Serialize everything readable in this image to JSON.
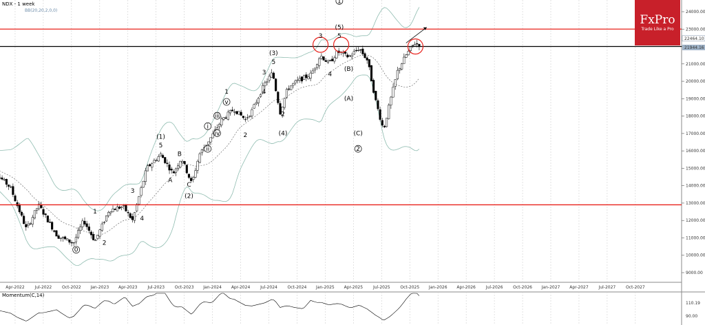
{
  "chart_data": {
    "type": "candlestick",
    "title": "NDX - 1 week",
    "indicator_label": "BB(20,20,2,0,0)",
    "momentum_label": "Momentum(C,14)",
    "momentum_value": "110.19",
    "momentum_ticks": [
      "90.00"
    ],
    "price_ticks": [
      "24000.00",
      "23000.00",
      "22000.00",
      "21000.00",
      "20000.00",
      "19000.00",
      "18000.00",
      "17000.00",
      "16000.00",
      "15000.00",
      "14000.00",
      "13000.00",
      "12000.00",
      "11000.00",
      "10000.00",
      "9000.00"
    ],
    "current_price": "22464.10",
    "current_price_2": "21944.16",
    "x_labels": [
      "Apr-2022",
      "Jul-2022",
      "Oct-2022",
      "Jan-2023",
      "Apr-2023",
      "Jul-2023",
      "Oct-2023",
      "Jan-2024",
      "Apr-2024",
      "Jul-2024",
      "Oct-2024",
      "Jan-2025",
      "Apr-2025",
      "Jul-2025",
      "Oct-2025",
      "Jan-2026",
      "Apr-2026",
      "Jul-2026",
      "Oct-2026",
      "Jan-2027",
      "Apr-2027",
      "Jul-2027",
      "Oct-2027"
    ],
    "horizontal_levels": [
      {
        "value": 23000,
        "color": "#e8201a"
      },
      {
        "value": 22000,
        "color": "#000000"
      },
      {
        "value": 12900,
        "color": "#e8201a"
      }
    ],
    "wave_labels": [
      {
        "text": "0",
        "date": "2022-10",
        "price": 10200,
        "circled": true
      },
      {
        "text": "1",
        "date": "2022-12",
        "price": 12400
      },
      {
        "text": "2",
        "date": "2023-01",
        "price": 10600
      },
      {
        "text": "3",
        "date": "2023-04",
        "price": 13600
      },
      {
        "text": "4",
        "date": "2023-05",
        "price": 12000
      },
      {
        "text": "(1)",
        "date": "2023-07",
        "price": 16700
      },
      {
        "text": "5",
        "date": "2023-07",
        "price": 16200
      },
      {
        "text": "A",
        "date": "2023-08",
        "price": 14200
      },
      {
        "text": "B",
        "date": "2023-09",
        "price": 15700
      },
      {
        "text": "C",
        "date": "2023-10",
        "price": 13950
      },
      {
        "text": "(2)",
        "date": "2023-10",
        "price": 13300
      },
      {
        "text": "i",
        "date": "2023-12",
        "price": 17300,
        "circled": true
      },
      {
        "text": "ii",
        "date": "2023-12",
        "price": 16000,
        "circled": true
      },
      {
        "text": "iii",
        "date": "2024-01",
        "price": 17900,
        "circled": true
      },
      {
        "text": "iv",
        "date": "2024-01",
        "price": 16900,
        "circled": true
      },
      {
        "text": "v",
        "date": "2024-02",
        "price": 18700,
        "circled": true
      },
      {
        "text": "1",
        "date": "2024-02",
        "price": 19300
      },
      {
        "text": "2",
        "date": "2024-04",
        "price": 16800
      },
      {
        "text": "3",
        "date": "2024-06",
        "price": 20400
      },
      {
        "text": "4",
        "date": "2024-06",
        "price": 19300
      },
      {
        "text": "(3)",
        "date": "2024-07",
        "price": 21500
      },
      {
        "text": "5",
        "date": "2024-07",
        "price": 21000
      },
      {
        "text": "2",
        "date": "2024-08",
        "price": 18000
      },
      {
        "text": "(4)",
        "date": "2024-08",
        "price": 16900
      },
      {
        "text": "3",
        "date": "2024-12",
        "price": 22500
      },
      {
        "text": "4",
        "date": "2025-01",
        "price": 20300
      },
      {
        "text": "1",
        "date": "2025-02",
        "price": 24500,
        "circled": true
      },
      {
        "text": "(5)",
        "date": "2025-02",
        "price": 23000
      },
      {
        "text": "5",
        "date": "2025-02",
        "price": 22500
      },
      {
        "text": "(B)",
        "date": "2025-03",
        "price": 20600
      },
      {
        "text": "(A)",
        "date": "2025-03",
        "price": 18900
      },
      {
        "text": "(C)",
        "date": "2025-04",
        "price": 16900
      },
      {
        "text": "2",
        "date": "2025-04",
        "price": 16000,
        "circled": true
      }
    ],
    "grid": "vertical",
    "logo": {
      "name": "FxPro",
      "tagline": "Trade Like a Pro"
    }
  }
}
